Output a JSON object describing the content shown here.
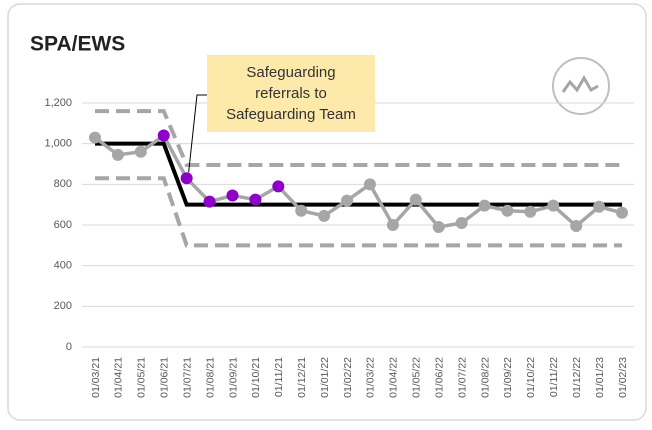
{
  "chart_data": {
    "type": "line",
    "title": "SPA/EWS",
    "annotation": "Safeguarding referrals to Safeguarding Team",
    "categories": [
      "01/03/21",
      "01/04/21",
      "01/05/21",
      "01/06/21",
      "01/07/21",
      "01/08/21",
      "01/09/21",
      "01/10/21",
      "01/11/21",
      "01/12/21",
      "01/01/22",
      "01/02/22",
      "01/03/22",
      "01/04/22",
      "01/05/22",
      "01/06/22",
      "01/07/22",
      "01/08/22",
      "01/09/22",
      "01/10/22",
      "01/11/22",
      "01/12/22",
      "01/01/23",
      "01/02/23"
    ],
    "values": [
      1030,
      945,
      960,
      1040,
      830,
      715,
      745,
      725,
      790,
      670,
      645,
      720,
      800,
      600,
      725,
      590,
      610,
      695,
      670,
      665,
      695,
      595,
      690,
      660
    ],
    "marker_colors": [
      "#a6a6a6",
      "#a6a6a6",
      "#a6a6a6",
      "#8e00c8",
      "#8e00c8",
      "#8e00c8",
      "#8e00c8",
      "#8e00c8",
      "#8e00c8",
      "#a6a6a6",
      "#a6a6a6",
      "#a6a6a6",
      "#a6a6a6",
      "#a6a6a6",
      "#a6a6a6",
      "#a6a6a6",
      "#a6a6a6",
      "#a6a6a6",
      "#a6a6a6",
      "#a6a6a6",
      "#a6a6a6",
      "#a6a6a6",
      "#a6a6a6",
      "#a6a6a6"
    ],
    "color": "#a6a6a6",
    "mean": [
      1000,
      1000,
      1000,
      1000,
      700,
      700,
      700,
      700,
      700,
      700,
      700,
      700,
      700,
      700,
      700,
      700,
      700,
      700,
      700,
      700,
      700,
      700,
      700,
      700
    ],
    "mean_color": "#000000",
    "upper": [
      1160,
      1160,
      1160,
      1160,
      895,
      895,
      895,
      895,
      895,
      895,
      895,
      895,
      895,
      895,
      895,
      895,
      895,
      895,
      895,
      895,
      895,
      895,
      895,
      895
    ],
    "lower": [
      830,
      830,
      830,
      830,
      500,
      500,
      500,
      500,
      500,
      500,
      500,
      500,
      500,
      500,
      500,
      500,
      500,
      500,
      500,
      500,
      500,
      500,
      500,
      500
    ],
    "limit_color": "#a6a6a6",
    "ylim": [
      0,
      1200
    ],
    "yticks": [
      0,
      200,
      400,
      600,
      800,
      {
        "value": 1000,
        "label": "1,000"
      },
      {
        "value": 1200,
        "label": "1,200"
      }
    ],
    "grid": true
  }
}
